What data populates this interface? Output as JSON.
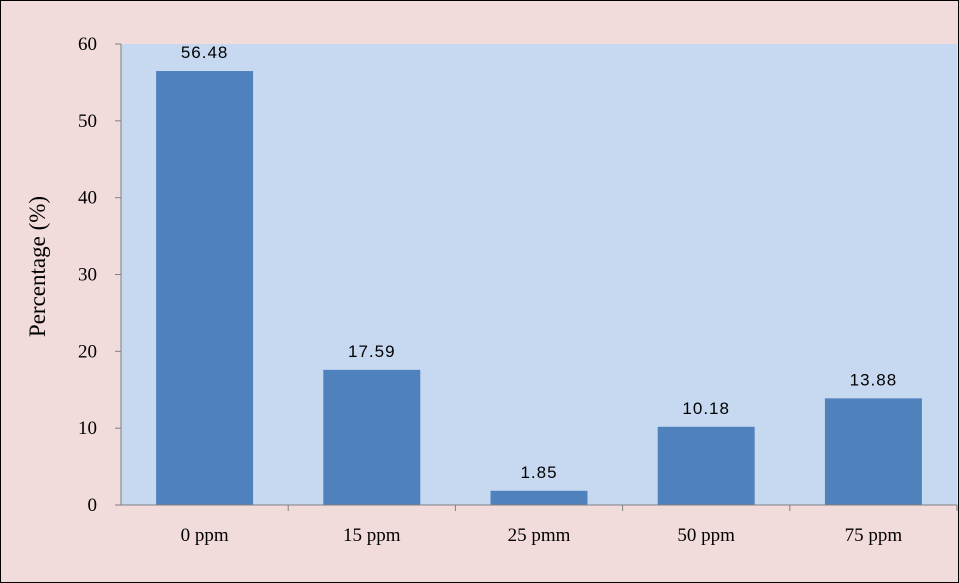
{
  "chart_data": {
    "type": "bar",
    "title": "",
    "xlabel": "",
    "ylabel": "Percentage (%)",
    "categories": [
      "0 ppm",
      "15 ppm",
      "25 pmm",
      "50 ppm",
      "75 ppm"
    ],
    "values": [
      56.48,
      17.59,
      1.85,
      10.18,
      13.88
    ],
    "data_labels": [
      "56.48",
      "17.59",
      "1.85",
      "10.18",
      "13.88"
    ],
    "ylim": [
      0,
      60
    ],
    "yticks": [
      0,
      10,
      20,
      30,
      40,
      50,
      60
    ],
    "ytick_labels": [
      "0",
      "10",
      "20",
      "30",
      "40",
      "50",
      "60"
    ],
    "grid": false,
    "legend": "none",
    "colors": {
      "bar": "#4f81bd",
      "plot_area": "#c6d9f1",
      "chart_area": "#f2dcdb",
      "axis": "#808080",
      "border": "#000000"
    }
  }
}
